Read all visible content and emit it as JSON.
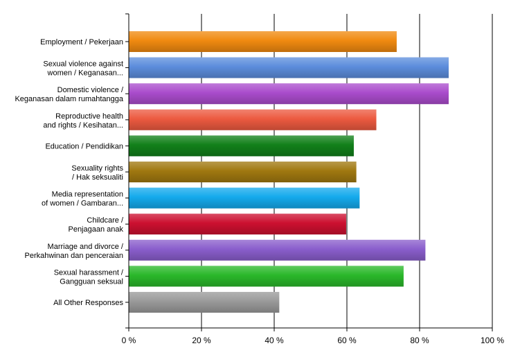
{
  "chart_data": {
    "type": "bar",
    "orientation": "horizontal",
    "title": "",
    "xlabel": "",
    "ylabel": "",
    "xlim": [
      0,
      100
    ],
    "grid": true,
    "legend": "none",
    "tick_labels": [
      "0 %",
      "20 %",
      "40 %",
      "60 %",
      "80 %",
      "100 %"
    ],
    "tick_values": [
      0,
      20,
      40,
      60,
      80,
      100
    ],
    "categories": [
      [
        "Employment / Pekerjaan"
      ],
      [
        "Sexual violence against",
        "women / Keganasan..."
      ],
      [
        "Domestic violence /",
        "Keganasan dalam rumahtangga"
      ],
      [
        "Reproductive health",
        "and rights / Kesihatan..."
      ],
      [
        "Education / Pendidikan"
      ],
      [
        "Sexuality rights",
        "/ Hak seksualiti"
      ],
      [
        "Media representation",
        "of women / Gambaran..."
      ],
      [
        "Childcare /",
        "Penjagaan anak"
      ],
      [
        "Marriage and divorce /",
        "Perkahwinan dan penceraian"
      ],
      [
        "Sexual harassment /",
        "Gangguan seksual"
      ],
      [
        "All Other Responses"
      ]
    ],
    "values": [
      73.7,
      88.0,
      88.0,
      68.1,
      61.9,
      62.6,
      63.5,
      59.8,
      81.6,
      75.6,
      41.4
    ],
    "colors": [
      "#f08a10",
      "#5c8ddc",
      "#aa4ccc",
      "#ec5a40",
      "#12801a",
      "#a07810",
      "#14aaec",
      "#cc1030",
      "#8a5ecc",
      "#2ab82a",
      "#9a9a9a"
    ]
  }
}
